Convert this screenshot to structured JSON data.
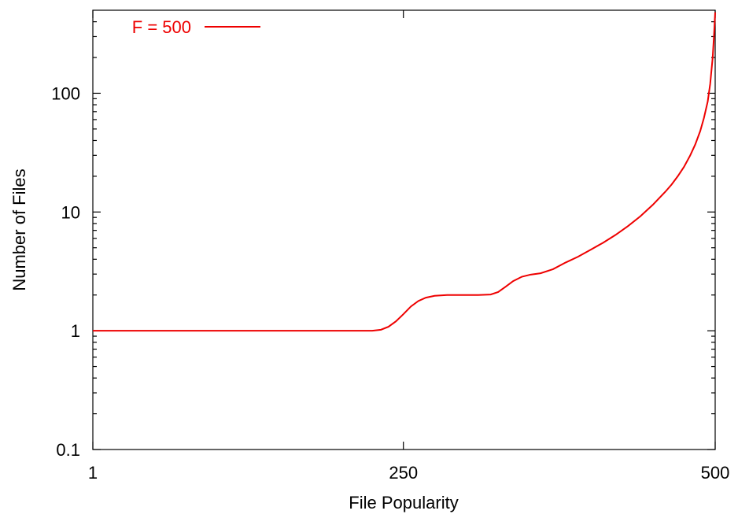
{
  "chart_data": {
    "type": "line",
    "title": "",
    "xlabel": "File Popularity",
    "ylabel": "Number of Files",
    "xlim": [
      1,
      500
    ],
    "ylim": [
      0.1,
      500
    ],
    "yscale": "log",
    "grid": false,
    "legend_position": "top-left",
    "x_ticks": [
      {
        "value": 1,
        "label": "1"
      },
      {
        "value": 250,
        "label": "250"
      },
      {
        "value": 500,
        "label": "500"
      }
    ],
    "y_ticks": [
      {
        "value": 0.1,
        "label": "0.1"
      },
      {
        "value": 1,
        "label": "1"
      },
      {
        "value": 10,
        "label": "10"
      },
      {
        "value": 100,
        "label": "100"
      }
    ],
    "series": [
      {
        "name": "F = 500",
        "color": "#ee0000",
        "x": [
          1,
          50,
          100,
          150,
          200,
          225,
          232,
          238,
          244,
          250,
          256,
          262,
          268,
          275,
          285,
          300,
          310,
          320,
          326,
          332,
          338,
          345,
          352,
          360,
          370,
          380,
          390,
          400,
          410,
          420,
          430,
          440,
          450,
          460,
          465,
          470,
          475,
          480,
          484,
          488,
          491,
          494,
          496,
          498,
          499,
          500
        ],
        "y": [
          1,
          1,
          1,
          1,
          1,
          1,
          1.02,
          1.08,
          1.2,
          1.38,
          1.6,
          1.78,
          1.9,
          1.97,
          2,
          2,
          2,
          2.02,
          2.12,
          2.35,
          2.62,
          2.85,
          2.97,
          3.05,
          3.3,
          3.75,
          4.2,
          4.8,
          5.5,
          6.4,
          7.6,
          9.2,
          11.5,
          14.8,
          17,
          20,
          24,
          30,
          37,
          48,
          62,
          85,
          120,
          200,
          300,
          480
        ]
      }
    ]
  }
}
